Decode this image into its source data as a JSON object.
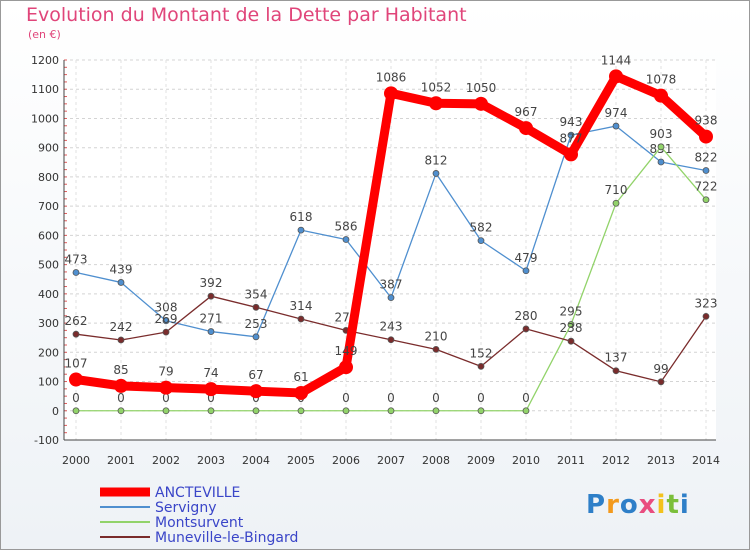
{
  "chart_data": {
    "type": "line",
    "title": "Evolution du Montant de la Dette par Habitant",
    "ylabel": "(en €)",
    "xlabel": "",
    "x": [
      "2000",
      "2001",
      "2002",
      "2003",
      "2004",
      "2005",
      "2006",
      "2007",
      "2008",
      "2009",
      "2010",
      "2011",
      "2012",
      "2013",
      "2014"
    ],
    "ylim": [
      -100,
      1200
    ],
    "yticks": [
      "-100",
      "0",
      "100",
      "200",
      "300",
      "400",
      "500",
      "600",
      "700",
      "800",
      "900",
      "1000",
      "1100",
      "1200"
    ],
    "grid": true,
    "legend_position": "bottom-left",
    "series": [
      {
        "name": "ANCTEVILLE",
        "color": "#ff0000",
        "values": [
          107,
          85,
          79,
          74,
          67,
          61,
          149,
          1086,
          1052,
          1050,
          967,
          877,
          1144,
          1078,
          938
        ]
      },
      {
        "name": "Servigny",
        "color": "#4f8fcf",
        "values": [
          473,
          439,
          308,
          271,
          253,
          618,
          586,
          387,
          812,
          582,
          479,
          943,
          974,
          851,
          822
        ]
      },
      {
        "name": "Montsurvent",
        "color": "#92d36a",
        "values": [
          0,
          0,
          0,
          0,
          0,
          0,
          0,
          0,
          0,
          0,
          0,
          295,
          710,
          903,
          722
        ]
      },
      {
        "name": "Muneville-le-Bingard",
        "color": "#7a2c2c",
        "values": [
          262,
          242,
          269,
          392,
          354,
          314,
          275,
          243,
          210,
          152,
          280,
          238,
          137,
          99,
          323
        ]
      }
    ]
  },
  "logo": {
    "letters": [
      "P",
      "r",
      "o",
      "x",
      "i",
      "t",
      "i"
    ],
    "colors": [
      "#2e7fc8",
      "#f39a1d",
      "#2e7fc8",
      "#e94d7f",
      "#f3c21d",
      "#7bbf3a",
      "#2e7fc8"
    ]
  }
}
